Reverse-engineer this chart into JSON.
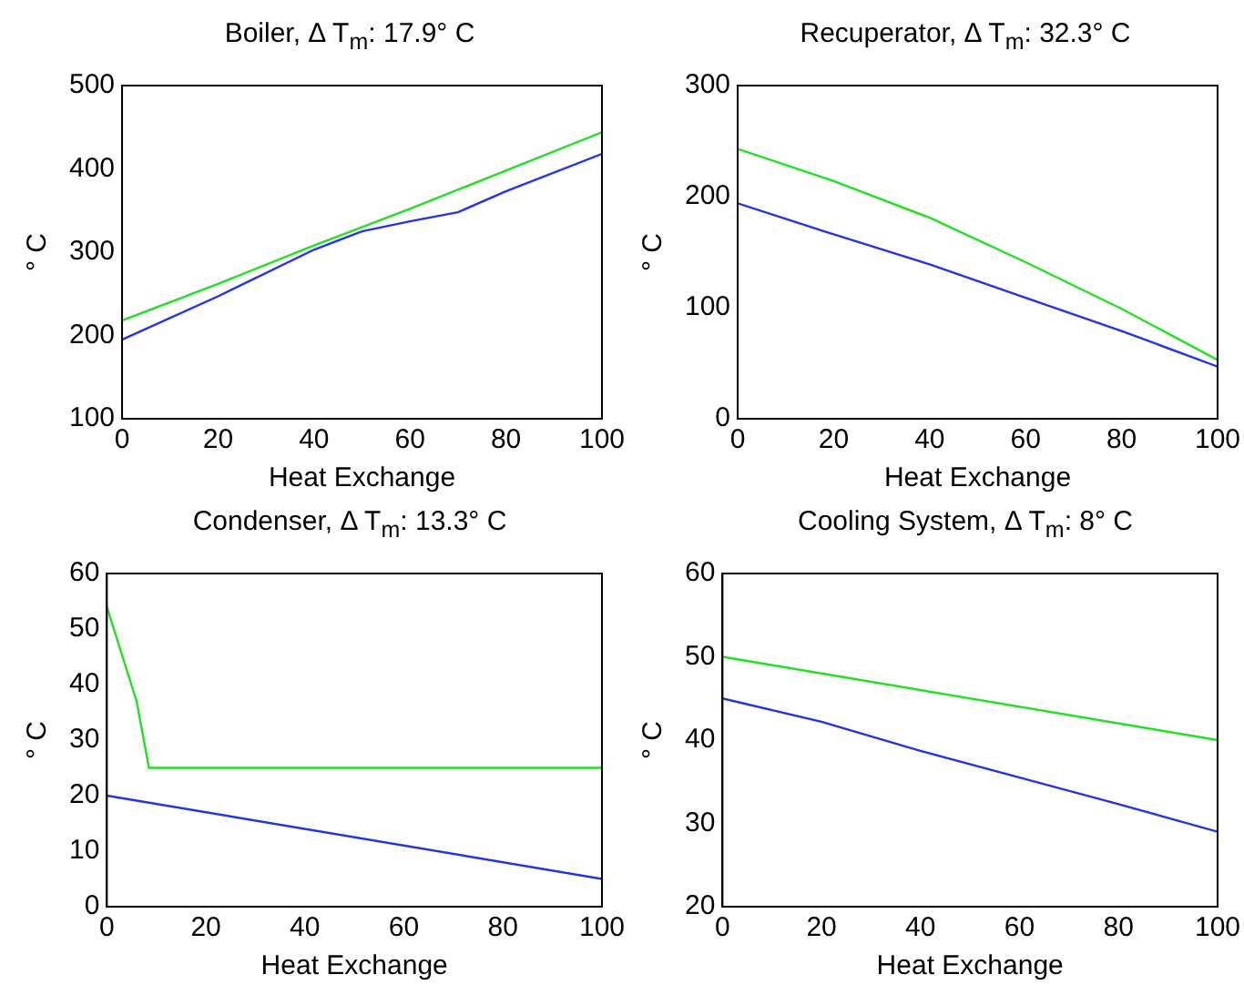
{
  "chart_data": [
    {
      "type": "line",
      "title": "Boiler, Δ T$_{m}$: 17.9° C",
      "xlabel": "Heat Exchange",
      "ylabel": "° C",
      "xlim": [
        0,
        100
      ],
      "xticks": [
        0,
        20,
        40,
        60,
        80,
        100
      ],
      "ylim": [
        100,
        500
      ],
      "yticks": [
        100,
        200,
        300,
        400,
        500
      ],
      "grid": false,
      "legend": false,
      "marker": "none",
      "series": [
        {
          "color": "#22e022",
          "x": [
            0,
            20,
            40,
            60,
            80,
            100
          ],
          "values": [
            218,
            262,
            308,
            352,
            398,
            444
          ]
        },
        {
          "color": "#2233ee",
          "x": [
            0,
            20,
            40,
            50,
            60,
            70,
            80,
            100
          ],
          "values": [
            195,
            247,
            303,
            325,
            337,
            348,
            373,
            418
          ]
        }
      ]
    },
    {
      "type": "line",
      "title": "Recuperator, Δ T$_{m}$: 32.3° C",
      "xlabel": "Heat Exchange",
      "ylabel": "° C",
      "xlim": [
        0,
        100
      ],
      "xticks": [
        0,
        20,
        40,
        60,
        80,
        100
      ],
      "ylim": [
        0,
        300
      ],
      "yticks": [
        0,
        100,
        200,
        300
      ],
      "grid": false,
      "legend": false,
      "marker": "none",
      "series": [
        {
          "color": "#22e022",
          "x": [
            0,
            20,
            40,
            60,
            80,
            100
          ],
          "values": [
            243,
            214,
            181,
            141,
            99,
            53
          ]
        },
        {
          "color": "#2233ee",
          "x": [
            0,
            20,
            40,
            60,
            80,
            100
          ],
          "values": [
            194,
            166,
            139,
            109,
            79,
            47
          ]
        }
      ]
    },
    {
      "type": "line",
      "title": "Condenser, Δ T$_{m}$: 13.3° C",
      "xlabel": "Heat Exchange",
      "ylabel": "° C",
      "xlim": [
        0,
        100
      ],
      "xticks": [
        0,
        20,
        40,
        60,
        80,
        100
      ],
      "ylim": [
        0,
        60
      ],
      "yticks": [
        0,
        10,
        20,
        30,
        40,
        50,
        60
      ],
      "grid": false,
      "legend": false,
      "marker": "none",
      "series": [
        {
          "color": "#22e022",
          "x": [
            0,
            6,
            8.5,
            100
          ],
          "values": [
            54,
            37,
            25,
            25
          ]
        },
        {
          "color": "#2233ee",
          "x": [
            0,
            100
          ],
          "values": [
            20,
            5
          ]
        }
      ]
    },
    {
      "type": "line",
      "title": "Cooling System, Δ T$_{m}$: 8° C",
      "xlabel": "Heat Exchange",
      "ylabel": "° C",
      "xlim": [
        0,
        100
      ],
      "xticks": [
        0,
        20,
        40,
        60,
        80,
        100
      ],
      "ylim": [
        20,
        60
      ],
      "yticks": [
        20,
        30,
        40,
        50,
        60
      ],
      "grid": false,
      "legend": false,
      "marker": "none",
      "series": [
        {
          "color": "#22e022",
          "x": [
            0,
            100
          ],
          "values": [
            50,
            40
          ]
        },
        {
          "color": "#2233ee",
          "x": [
            0,
            20,
            40,
            60,
            80,
            100
          ],
          "values": [
            45,
            42.2,
            38.7,
            35.5,
            32.3,
            29
          ]
        }
      ]
    }
  ]
}
